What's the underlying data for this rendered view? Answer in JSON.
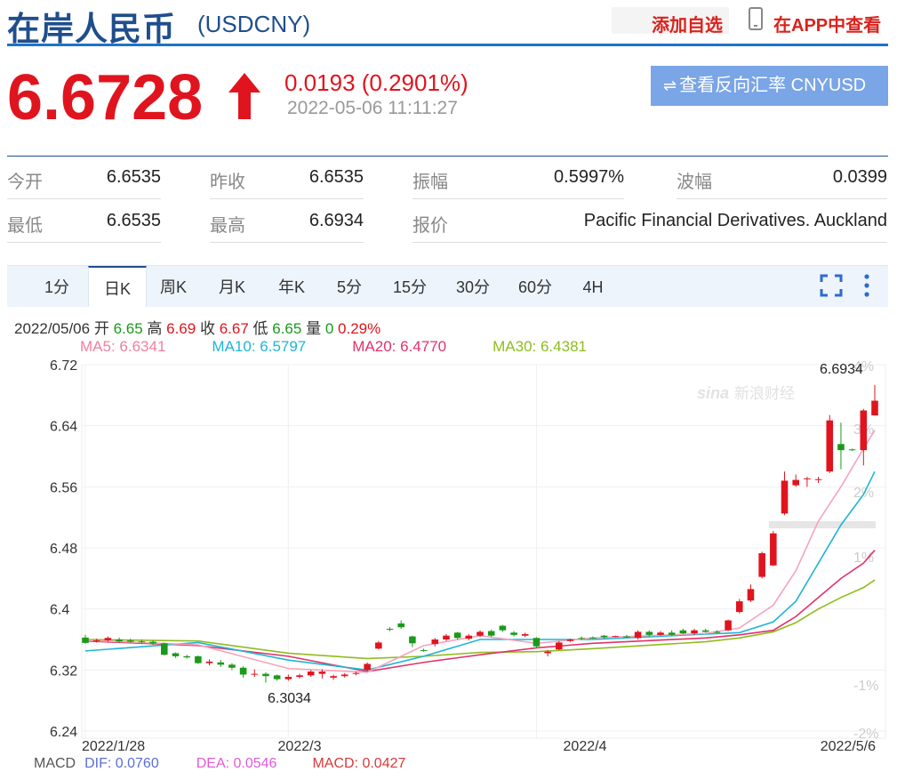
{
  "header": {
    "title": "在岸人民币",
    "code": "(USDCNY)",
    "add_favorite": "添加自选",
    "view_in_app": "在APP中查看"
  },
  "quote": {
    "price": "6.6728",
    "change": "0.0193 (0.2901%)",
    "time": "2022-05-06 11:11:27",
    "reverse_button": "查看反向汇率 CNYUSD"
  },
  "stats": [
    {
      "label": "今开",
      "value": "6.6535"
    },
    {
      "label": "昨收",
      "value": "6.6535"
    },
    {
      "label": "振幅",
      "value": "0.5997%"
    },
    {
      "label": "波幅",
      "value": "0.0399"
    },
    {
      "label": "最低",
      "value": "6.6535"
    },
    {
      "label": "最高",
      "value": "6.6934"
    },
    {
      "label": "报价",
      "value": "Pacific Financial Derivatives. Auckland"
    }
  ],
  "tabs": [
    {
      "label": "1分",
      "active": false
    },
    {
      "label": "日K",
      "active": true
    },
    {
      "label": "周K",
      "active": false
    },
    {
      "label": "月K",
      "active": false
    },
    {
      "label": "年K",
      "active": false
    },
    {
      "label": "5分",
      "active": false
    },
    {
      "label": "15分",
      "active": false
    },
    {
      "label": "30分",
      "active": false
    },
    {
      "label": "60分",
      "active": false
    },
    {
      "label": "4H",
      "active": false
    }
  ],
  "info_bar": {
    "date": "2022/05/06",
    "open_label": "开",
    "open": "6.65",
    "high_label": "高",
    "high": "6.69",
    "close_label": "收",
    "close": "6.67",
    "low_label": "低",
    "low": "6.65",
    "vol_label": "量",
    "vol": "0",
    "pct": "0.29%"
  },
  "ma_legend": [
    {
      "text": "MA5: 6.6341",
      "color": "#f07fa0"
    },
    {
      "text": "MA10: 6.5797",
      "color": "#1fb5d6"
    },
    {
      "text": "MA20: 6.4770",
      "color": "#e0336a"
    },
    {
      "text": "MA30: 6.4381",
      "color": "#8fbc1f"
    }
  ],
  "macd_legend": [
    {
      "text": "MACD",
      "color": "#555"
    },
    {
      "text": "DIF: 0.0760",
      "color": "#5b6fd6"
    },
    {
      "text": "DEA: 0.0546",
      "color": "#e05bd6"
    },
    {
      "text": "MACD: 0.0427",
      "color": "#d63a3a"
    }
  ],
  "colors": {
    "up": "#e0141e",
    "down": "#1a9a1a",
    "accent": "#1f4e8c"
  },
  "watermark": "新浪财经",
  "chart_data": {
    "type": "candlestick",
    "ylim": [
      6.24,
      6.72
    ],
    "y_ticks": [
      "6.72",
      "6.64",
      "6.56",
      "6.48",
      "6.4",
      "6.32",
      "6.24"
    ],
    "pct_ticks": [
      "4%",
      "3%",
      "2%",
      "1%",
      "-1%",
      "-2%"
    ],
    "x_labels": [
      "2022/1/28",
      "2022/3",
      "2022/4",
      "2022/5/6"
    ],
    "annotations": {
      "max": "6.6934",
      "min": "6.3034"
    },
    "candles": [
      [
        6.3625,
        6.3555,
        6.366,
        6.3545
      ],
      [
        6.3585,
        6.359,
        6.361,
        6.356
      ],
      [
        6.359,
        6.362,
        6.364,
        6.357
      ],
      [
        6.36,
        6.3575,
        6.3625,
        6.356
      ],
      [
        6.3585,
        6.357,
        6.361,
        6.3555
      ],
      [
        6.3575,
        6.3565,
        6.36,
        6.354
      ],
      [
        6.357,
        6.355,
        6.359,
        6.353
      ],
      [
        6.355,
        6.34,
        6.356,
        6.339
      ],
      [
        6.342,
        6.338,
        6.343,
        6.336
      ],
      [
        6.338,
        6.3365,
        6.34,
        6.335
      ],
      [
        6.338,
        6.329,
        6.339,
        6.328
      ],
      [
        6.329,
        6.331,
        6.334,
        6.326
      ],
      [
        6.33,
        6.327,
        6.333,
        6.324
      ],
      [
        6.327,
        6.323,
        6.329,
        6.32
      ],
      [
        6.323,
        6.314,
        6.325,
        6.31
      ],
      [
        6.314,
        6.315,
        6.321,
        6.311
      ],
      [
        6.315,
        6.312,
        6.317,
        6.3034
      ],
      [
        6.313,
        6.308,
        6.314,
        6.306
      ],
      [
        6.308,
        6.311,
        6.314,
        6.306
      ],
      [
        6.311,
        6.313,
        6.315,
        6.309
      ],
      [
        6.313,
        6.318,
        6.32,
        6.311
      ],
      [
        6.315,
        6.318,
        6.321,
        6.309
      ],
      [
        6.31,
        6.312,
        6.314,
        6.307
      ],
      [
        6.312,
        6.314,
        6.316,
        6.31
      ],
      [
        6.315,
        6.316,
        6.318,
        6.313
      ],
      [
        6.32,
        6.328,
        6.33,
        6.318
      ],
      [
        6.348,
        6.356,
        6.358,
        6.347
      ],
      [
        6.374,
        6.373,
        6.376,
        6.371
      ],
      [
        6.381,
        6.376,
        6.385,
        6.374
      ],
      [
        6.364,
        6.355,
        6.365,
        6.35
      ],
      [
        6.346,
        6.3455,
        6.348,
        6.344
      ],
      [
        6.354,
        6.36,
        6.362,
        6.351
      ],
      [
        6.36,
        6.365,
        6.367,
        6.358
      ],
      [
        6.369,
        6.362,
        6.37,
        6.36
      ],
      [
        6.361,
        6.365,
        6.367,
        6.359
      ],
      [
        6.365,
        6.37,
        6.372,
        6.363
      ],
      [
        6.371,
        6.365,
        6.373,
        6.363
      ],
      [
        6.378,
        6.372,
        6.379,
        6.37
      ],
      [
        6.369,
        6.366,
        6.371,
        6.364
      ],
      [
        6.365,
        6.367,
        6.369,
        6.363
      ],
      [
        6.362,
        6.351,
        6.363,
        6.349
      ],
      [
        6.342,
        6.344,
        6.346,
        6.338
      ],
      [
        6.347,
        6.356,
        6.358,
        6.346
      ],
      [
        6.358,
        6.36,
        6.361,
        6.357
      ],
      [
        6.362,
        6.361,
        6.364,
        6.359
      ],
      [
        6.3625,
        6.362,
        6.364,
        6.361
      ],
      [
        6.365,
        6.363,
        6.366,
        6.361
      ],
      [
        6.364,
        6.3645,
        6.365,
        6.363
      ],
      [
        6.364,
        6.363,
        6.366,
        6.362
      ],
      [
        6.362,
        6.37,
        6.372,
        6.36
      ],
      [
        6.37,
        6.366,
        6.372,
        6.364
      ],
      [
        6.366,
        6.369,
        6.371,
        6.365
      ],
      [
        6.369,
        6.366,
        6.372,
        6.365
      ],
      [
        6.372,
        6.368,
        6.374,
        6.367
      ],
      [
        6.368,
        6.372,
        6.374,
        6.366
      ],
      [
        6.372,
        6.37,
        6.374,
        6.369
      ],
      [
        6.37,
        6.369,
        6.372,
        6.368
      ],
      [
        6.372,
        6.385,
        6.386,
        6.371
      ],
      [
        6.396,
        6.41,
        6.413,
        6.394
      ],
      [
        6.411,
        6.426,
        6.432,
        6.409
      ],
      [
        6.442,
        6.473,
        6.475,
        6.44
      ],
      [
        6.457,
        6.499,
        6.502,
        6.456
      ],
      [
        6.525,
        6.568,
        6.58,
        6.523
      ],
      [
        6.562,
        6.569,
        6.576,
        6.56
      ],
      [
        6.57,
        6.571,
        6.573,
        6.56
      ],
      [
        6.569,
        6.57,
        6.573,
        6.565
      ],
      [
        6.58,
        6.647,
        6.654,
        6.578
      ],
      [
        6.616,
        6.608,
        6.644,
        6.583
      ],
      [
        6.609,
        6.6085,
        6.61,
        6.607
      ],
      [
        6.608,
        6.66,
        6.662,
        6.588
      ],
      [
        6.6535,
        6.6728,
        6.6934,
        6.6535
      ]
    ],
    "ma5": [
      [
        0,
        6.359
      ],
      [
        10,
        6.353
      ],
      [
        18,
        6.322
      ],
      [
        25,
        6.317
      ],
      [
        30,
        6.352
      ],
      [
        35,
        6.365
      ],
      [
        40,
        6.355
      ],
      [
        45,
        6.362
      ],
      [
        55,
        6.368
      ],
      [
        58,
        6.375
      ],
      [
        61,
        6.405
      ],
      [
        63,
        6.45
      ],
      [
        65,
        6.515
      ],
      [
        67,
        6.56
      ],
      [
        69,
        6.61
      ],
      [
        70,
        6.634
      ]
    ],
    "ma10": [
      [
        0,
        6.345
      ],
      [
        10,
        6.356
      ],
      [
        18,
        6.333
      ],
      [
        25,
        6.32
      ],
      [
        30,
        6.338
      ],
      [
        35,
        6.36
      ],
      [
        40,
        6.36
      ],
      [
        45,
        6.36
      ],
      [
        55,
        6.367
      ],
      [
        58,
        6.369
      ],
      [
        61,
        6.383
      ],
      [
        63,
        6.41
      ],
      [
        65,
        6.46
      ],
      [
        67,
        6.51
      ],
      [
        69,
        6.55
      ],
      [
        70,
        6.58
      ]
    ],
    "ma20": [
      [
        0,
        6.358
      ],
      [
        10,
        6.352
      ],
      [
        18,
        6.338
      ],
      [
        25,
        6.318
      ],
      [
        30,
        6.33
      ],
      [
        35,
        6.34
      ],
      [
        40,
        6.349
      ],
      [
        45,
        6.355
      ],
      [
        55,
        6.362
      ],
      [
        58,
        6.366
      ],
      [
        61,
        6.372
      ],
      [
        63,
        6.39
      ],
      [
        65,
        6.415
      ],
      [
        67,
        6.44
      ],
      [
        69,
        6.46
      ],
      [
        70,
        6.477
      ]
    ],
    "ma30": [
      [
        0,
        6.36
      ],
      [
        10,
        6.358
      ],
      [
        18,
        6.342
      ],
      [
        25,
        6.335
      ],
      [
        30,
        6.338
      ],
      [
        35,
        6.343
      ],
      [
        40,
        6.344
      ],
      [
        45,
        6.348
      ],
      [
        55,
        6.357
      ],
      [
        58,
        6.362
      ],
      [
        61,
        6.37
      ],
      [
        63,
        6.382
      ],
      [
        65,
        6.4
      ],
      [
        67,
        6.415
      ],
      [
        69,
        6.428
      ],
      [
        70,
        6.438
      ]
    ]
  }
}
